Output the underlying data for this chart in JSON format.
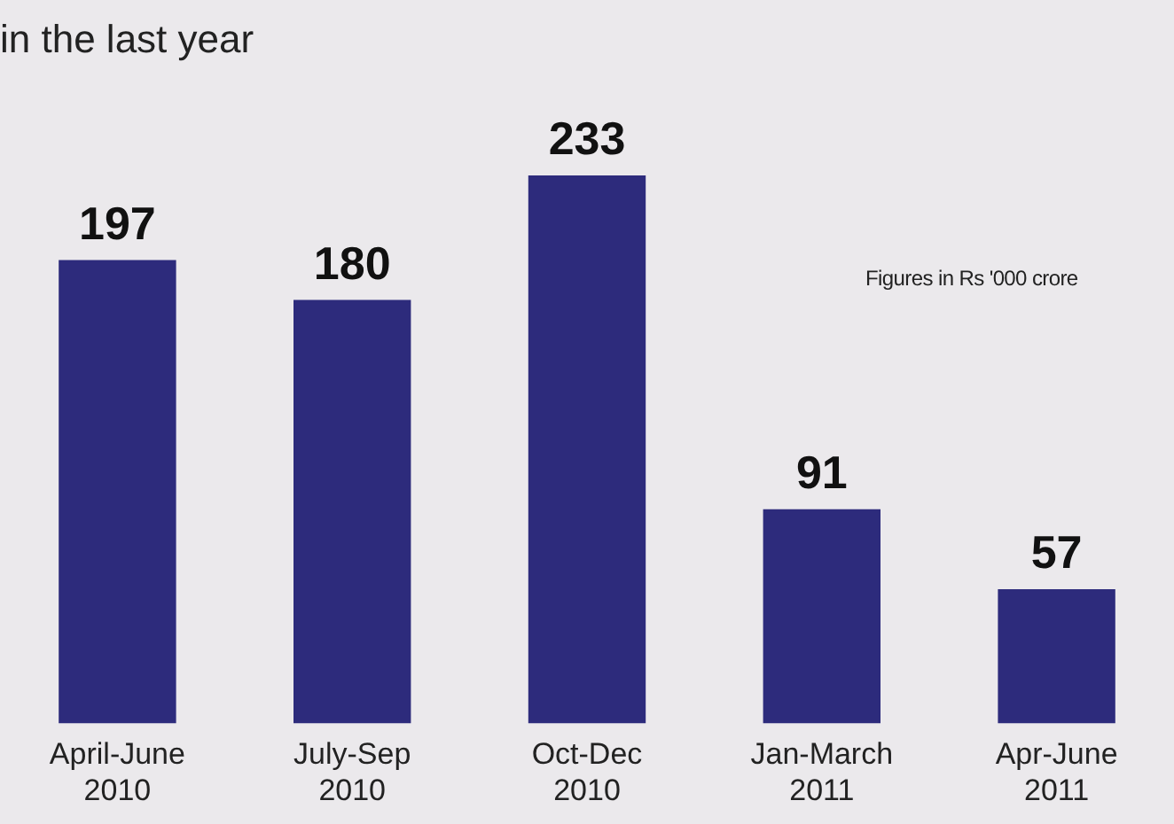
{
  "chart_data": {
    "type": "bar",
    "title": "in the last year",
    "categories": [
      "April-June\n2010",
      "July-Sep\n2010",
      "Oct-Dec\n2010",
      "Jan-March\n2011",
      "Apr-June\n2011"
    ],
    "values": [
      197,
      180,
      233,
      91,
      57
    ],
    "color": "#2d2b7c",
    "data_labels": true,
    "grid": false,
    "legend": false,
    "annotations": [
      "Figures in Rs '000 crore"
    ]
  }
}
